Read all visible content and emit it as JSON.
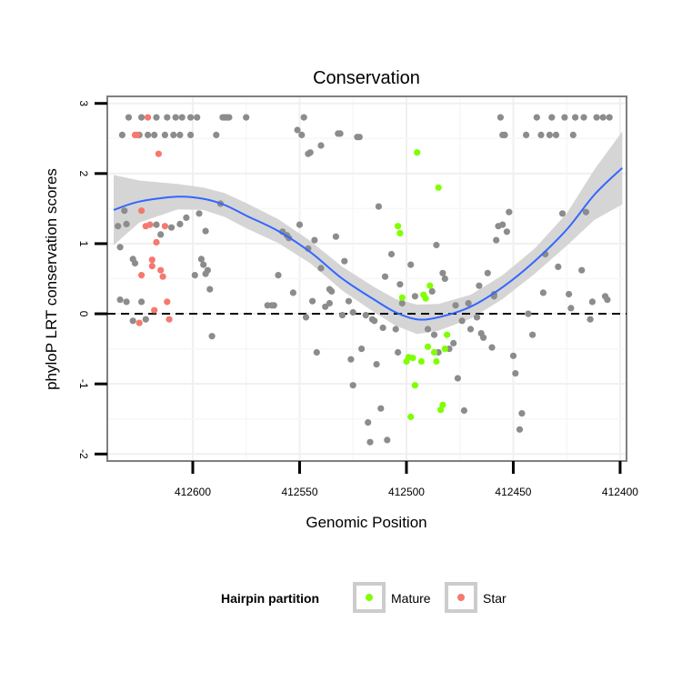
{
  "chart_data": {
    "type": "scatter",
    "title": "Conservation",
    "xlabel": "Genomic Position",
    "ylabel": "phyloP LRT conservation scores",
    "x_reversed": true,
    "xlim": [
      412640,
      412397
    ],
    "ylim": [
      -2.1,
      3.1
    ],
    "x_ticks": [
      412600,
      412550,
      412500,
      412450,
      412400
    ],
    "x_tick_labels": [
      "412600",
      "412550",
      "412500",
      "412450",
      "412400"
    ],
    "y_ticks": [
      -2,
      -1,
      0,
      1,
      2,
      3
    ],
    "y_tick_labels": [
      "-2",
      "-1",
      "0",
      "1",
      "2",
      "3"
    ],
    "grid": true,
    "reference_line": {
      "y": 0,
      "style": "dashed",
      "color": "#000000"
    },
    "legend": {
      "title": "Hairpin partition",
      "placement": "bottom",
      "entries": [
        {
          "label": "Mature",
          "color": "#7fff00"
        },
        {
          "label": "Star",
          "color": "#f4796e"
        }
      ]
    },
    "colors": {
      "other": "#8c8c8c",
      "mature": "#7fff00",
      "star": "#f4796e",
      "smooth_line": "#3366ff",
      "smooth_band": "#d3d3d3"
    },
    "series": [
      {
        "name": "",
        "group": "other",
        "points": [
          [
            412635,
            1.25
          ],
          [
            412634,
            0.95
          ],
          [
            412633,
            2.55
          ],
          [
            412632,
            1.47
          ],
          [
            412631,
            1.28
          ],
          [
            412630,
            2.8
          ],
          [
            412628,
            0.78
          ],
          [
            412627,
            0.72
          ],
          [
            412634,
            0.2
          ],
          [
            412631,
            0.17
          ],
          [
            412628,
            -0.1
          ],
          [
            412624,
            0.17
          ],
          [
            412622,
            -0.08
          ],
          [
            412625,
            2.55
          ],
          [
            412624,
            2.8
          ],
          [
            412621,
            2.55
          ],
          [
            412618,
            2.55
          ],
          [
            412617,
            1.27
          ],
          [
            412617,
            2.8
          ],
          [
            412615,
            1.13
          ],
          [
            412613,
            2.55
          ],
          [
            412612,
            2.8
          ],
          [
            412610,
            1.23
          ],
          [
            412609,
            2.55
          ],
          [
            412608,
            2.8
          ],
          [
            412606,
            2.55
          ],
          [
            412606,
            1.28
          ],
          [
            412605,
            2.8
          ],
          [
            412603,
            1.37
          ],
          [
            412601,
            2.55
          ],
          [
            412601,
            2.8
          ],
          [
            412599,
            0.55
          ],
          [
            412598,
            2.8
          ],
          [
            412597,
            1.43
          ],
          [
            412596,
            0.78
          ],
          [
            412595,
            0.7
          ],
          [
            412594,
            0.57
          ],
          [
            412594,
            1.18
          ],
          [
            412593,
            0.62
          ],
          [
            412592,
            0.35
          ],
          [
            412591,
            -0.32
          ],
          [
            412589,
            2.55
          ],
          [
            412587,
            1.57
          ],
          [
            412586,
            2.8
          ],
          [
            412585,
            2.8
          ],
          [
            412584,
            2.8
          ],
          [
            412583,
            2.8
          ],
          [
            412575,
            2.8
          ],
          [
            412565,
            0.12
          ],
          [
            412563,
            0.12
          ],
          [
            412562,
            0.12
          ],
          [
            412560,
            0.55
          ],
          [
            412558,
            1.17
          ],
          [
            412556,
            1.12
          ],
          [
            412555,
            1.08
          ],
          [
            412553,
            0.3
          ],
          [
            412551,
            2.62
          ],
          [
            412550,
            1.27
          ],
          [
            412549,
            2.55
          ],
          [
            412548,
            2.8
          ],
          [
            412547,
            -0.05
          ],
          [
            412546,
            2.28
          ],
          [
            412545,
            2.3
          ],
          [
            412546,
            0.93
          ],
          [
            412544,
            0.18
          ],
          [
            412543,
            1.05
          ],
          [
            412542,
            -0.55
          ],
          [
            412540,
            0.65
          ],
          [
            412540,
            2.4
          ],
          [
            412538,
            0.1
          ],
          [
            412536,
            0.35
          ],
          [
            412536,
            0.15
          ],
          [
            412535,
            0.32
          ],
          [
            412533,
            1.1
          ],
          [
            412532,
            2.57
          ],
          [
            412531,
            2.57
          ],
          [
            412530,
            -0.02
          ],
          [
            412529,
            0.75
          ],
          [
            412527,
            0.18
          ],
          [
            412526,
            -0.65
          ],
          [
            412525,
            0.02
          ],
          [
            412525,
            -1.02
          ],
          [
            412523,
            2.52
          ],
          [
            412522,
            2.52
          ],
          [
            412521,
            -0.5
          ],
          [
            412519,
            -0.02
          ],
          [
            412518,
            -1.55
          ],
          [
            412517,
            -1.83
          ],
          [
            412516,
            -0.08
          ],
          [
            412515,
            -0.1
          ],
          [
            412514,
            -0.72
          ],
          [
            412513,
            1.53
          ],
          [
            412512,
            -1.35
          ],
          [
            412511,
            -0.2
          ],
          [
            412510,
            0.53
          ],
          [
            412509,
            -1.8
          ],
          [
            412507,
            0.85
          ],
          [
            412505,
            -0.22
          ],
          [
            412504,
            -0.55
          ],
          [
            412503,
            0.42
          ],
          [
            412502,
            0.15
          ],
          [
            412498,
            0.7
          ],
          [
            412496,
            0.25
          ],
          [
            412490,
            -0.22
          ],
          [
            412488,
            0.32
          ],
          [
            412487,
            -0.3
          ],
          [
            412486,
            0.98
          ],
          [
            412485,
            -0.55
          ],
          [
            412483,
            0.58
          ],
          [
            412482,
            0.5
          ],
          [
            412480,
            -0.5
          ],
          [
            412478,
            -0.42
          ],
          [
            412477,
            0.12
          ],
          [
            412476,
            -0.92
          ],
          [
            412474,
            -0.1
          ],
          [
            412473,
            -1.38
          ],
          [
            412471,
            0.15
          ],
          [
            412470,
            -0.22
          ],
          [
            412467,
            -0.05
          ],
          [
            412466,
            0.4
          ],
          [
            412465,
            -0.28
          ],
          [
            412464,
            -0.34
          ],
          [
            412462,
            0.58
          ],
          [
            412460,
            -0.48
          ],
          [
            412459,
            0.25
          ],
          [
            412459,
            0.28
          ],
          [
            412458,
            1.05
          ],
          [
            412457,
            1.25
          ],
          [
            412456,
            2.8
          ],
          [
            412455,
            2.55
          ],
          [
            412455,
            1.27
          ],
          [
            412454,
            2.55
          ],
          [
            412453,
            1.17
          ],
          [
            412452,
            1.45
          ],
          [
            412450,
            -0.6
          ],
          [
            412449,
            -0.85
          ],
          [
            412447,
            -1.65
          ],
          [
            412446,
            -1.42
          ],
          [
            412444,
            2.55
          ],
          [
            412443,
            0.0
          ],
          [
            412441,
            -0.3
          ],
          [
            412439,
            2.8
          ],
          [
            412437,
            2.55
          ],
          [
            412436,
            0.3
          ],
          [
            412435,
            0.85
          ],
          [
            412433,
            2.55
          ],
          [
            412432,
            2.8
          ],
          [
            412430,
            2.55
          ],
          [
            412429,
            0.67
          ],
          [
            412427,
            1.43
          ],
          [
            412426,
            2.8
          ],
          [
            412424,
            0.28
          ],
          [
            412423,
            0.08
          ],
          [
            412422,
            2.55
          ],
          [
            412421,
            2.8
          ],
          [
            412418,
            0.62
          ],
          [
            412417,
            2.8
          ],
          [
            412416,
            1.45
          ],
          [
            412414,
            -0.08
          ],
          [
            412413,
            0.17
          ],
          [
            412411,
            2.8
          ],
          [
            412408,
            2.8
          ],
          [
            412407,
            0.25
          ],
          [
            412406,
            0.2
          ],
          [
            412405,
            2.8
          ]
        ]
      },
      {
        "name": "Mature",
        "group": "mature",
        "points": [
          [
            412504,
            1.25
          ],
          [
            412503,
            1.15
          ],
          [
            412502,
            0.23
          ],
          [
            412500,
            -0.68
          ],
          [
            412499,
            -0.62
          ],
          [
            412498,
            -1.47
          ],
          [
            412497,
            -0.63
          ],
          [
            412496,
            -1.02
          ],
          [
            412495,
            2.3
          ],
          [
            412493,
            -0.68
          ],
          [
            412492,
            0.27
          ],
          [
            412491,
            0.22
          ],
          [
            412490,
            -0.47
          ],
          [
            412489,
            0.4
          ],
          [
            412487,
            -0.55
          ],
          [
            412486,
            -0.68
          ],
          [
            412485,
            1.8
          ],
          [
            412484,
            -1.37
          ],
          [
            412483,
            -1.3
          ],
          [
            412482,
            -0.5
          ],
          [
            412481,
            -0.3
          ]
        ]
      },
      {
        "name": "Star",
        "group": "star",
        "points": [
          [
            412627,
            2.55
          ],
          [
            412626,
            2.55
          ],
          [
            412625,
            -0.13
          ],
          [
            412624,
            0.55
          ],
          [
            412624,
            1.47
          ],
          [
            412622,
            1.25
          ],
          [
            412621,
            2.8
          ],
          [
            412620,
            1.27
          ],
          [
            412619,
            0.77
          ],
          [
            412619,
            0.68
          ],
          [
            412618,
            0.05
          ],
          [
            412617,
            1.02
          ],
          [
            412616,
            2.28
          ],
          [
            412615,
            0.62
          ],
          [
            412614,
            0.53
          ],
          [
            412613,
            1.25
          ],
          [
            412612,
            0.17
          ],
          [
            412611,
            -0.08
          ]
        ]
      }
    ],
    "smooth_line": [
      [
        412637,
        1.48
      ],
      [
        412625,
        1.6
      ],
      [
        412607,
        1.67
      ],
      [
        412595,
        1.64
      ],
      [
        412585,
        1.55
      ],
      [
        412575,
        1.4
      ],
      [
        412560,
        1.18
      ],
      [
        412545,
        0.88
      ],
      [
        412530,
        0.5
      ],
      [
        412515,
        0.2
      ],
      [
        412505,
        0.02
      ],
      [
        412495,
        -0.08
      ],
      [
        412485,
        -0.05
      ],
      [
        412470,
        0.1
      ],
      [
        412455,
        0.38
      ],
      [
        412440,
        0.75
      ],
      [
        412425,
        1.2
      ],
      [
        412412,
        1.7
      ],
      [
        412399,
        2.08
      ]
    ],
    "smooth_band": [
      [
        412637,
        1.98,
        0.98
      ],
      [
        412625,
        1.9,
        1.3
      ],
      [
        412607,
        1.85,
        1.49
      ],
      [
        412595,
        1.8,
        1.48
      ],
      [
        412585,
        1.72,
        1.38
      ],
      [
        412575,
        1.58,
        1.22
      ],
      [
        412560,
        1.35,
        1.01
      ],
      [
        412545,
        1.04,
        0.72
      ],
      [
        412530,
        0.67,
        0.33
      ],
      [
        412515,
        0.38,
        0.02
      ],
      [
        412505,
        0.21,
        -0.17
      ],
      [
        412495,
        0.13,
        -0.29
      ],
      [
        412485,
        0.14,
        -0.24
      ],
      [
        412470,
        0.27,
        -0.07
      ],
      [
        412455,
        0.55,
        0.21
      ],
      [
        412440,
        0.93,
        0.57
      ],
      [
        412425,
        1.43,
        0.97
      ],
      [
        412412,
        2.06,
        1.34
      ],
      [
        412399,
        2.6,
        1.56
      ]
    ]
  }
}
